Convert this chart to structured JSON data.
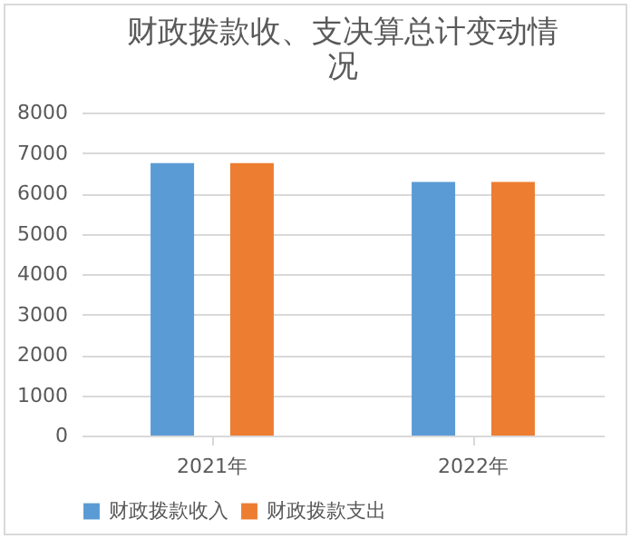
{
  "chart_data": {
    "type": "bar",
    "title": "财政拨款收、支决算总计变动情况",
    "categories": [
      "2021年",
      "2022年"
    ],
    "series": [
      {
        "name": "财政拨款收入",
        "color": "#5b9bd5",
        "values": [
          6750,
          6280
        ]
      },
      {
        "name": "财政拨款支出",
        "color": "#ed7d31",
        "values": [
          6750,
          6280
        ]
      }
    ],
    "ylim": [
      0,
      8000
    ],
    "yticks": [
      0,
      1000,
      2000,
      3000,
      4000,
      5000,
      6000,
      7000,
      8000
    ],
    "grid": "y",
    "legend": "bottom"
  }
}
